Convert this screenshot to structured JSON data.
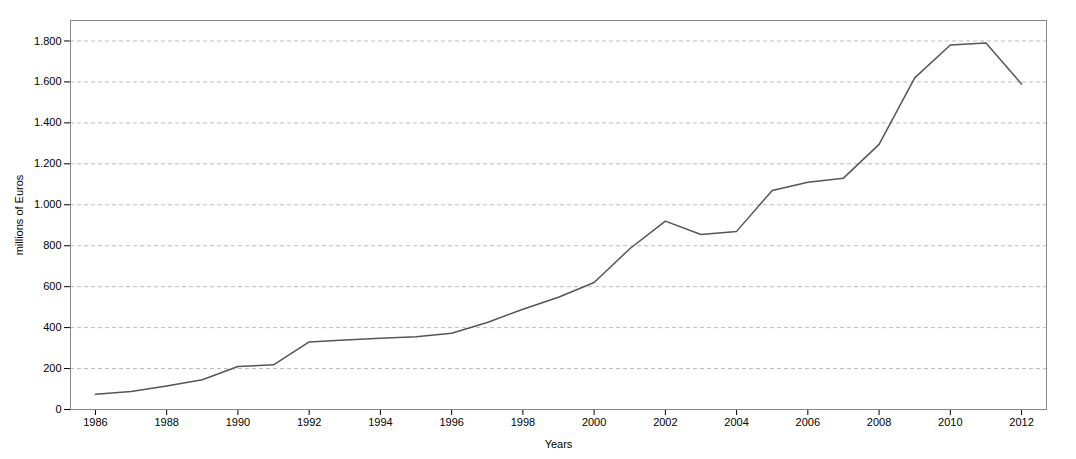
{
  "chart_data": {
    "type": "line",
    "x": [
      1986,
      1987,
      1988,
      1989,
      1990,
      1991,
      1992,
      1993,
      1994,
      1995,
      1996,
      1997,
      1998,
      1999,
      2000,
      2001,
      2002,
      2003,
      2004,
      2005,
      2006,
      2007,
      2008,
      2009,
      2010,
      2011,
      2012
    ],
    "values": [
      75,
      88,
      115,
      145,
      210,
      218,
      330,
      340,
      348,
      355,
      372,
      425,
      490,
      548,
      620,
      785,
      920,
      855,
      870,
      1070,
      1110,
      1130,
      1295,
      1620,
      1780,
      1790,
      1590
    ],
    "xlabel": "Years",
    "ylabel": "millions of Euros",
    "color": "#555555",
    "xlim": [
      1985.3,
      2012.7
    ],
    "xticks": [
      1986,
      1988,
      1990,
      1992,
      1994,
      1996,
      1998,
      2000,
      2002,
      2004,
      2006,
      2008,
      2010,
      2012
    ],
    "ylim": [
      0,
      1900
    ],
    "yticks": [
      0,
      200,
      400,
      600,
      800,
      {
        "value": 1000,
        "label": "1.000"
      },
      {
        "value": 1200,
        "label": "1.200"
      },
      {
        "value": 1400,
        "label": "1.400"
      },
      {
        "value": 1600,
        "label": "1.600"
      },
      {
        "value": 1800,
        "label": "1.800"
      }
    ],
    "grid": true
  }
}
